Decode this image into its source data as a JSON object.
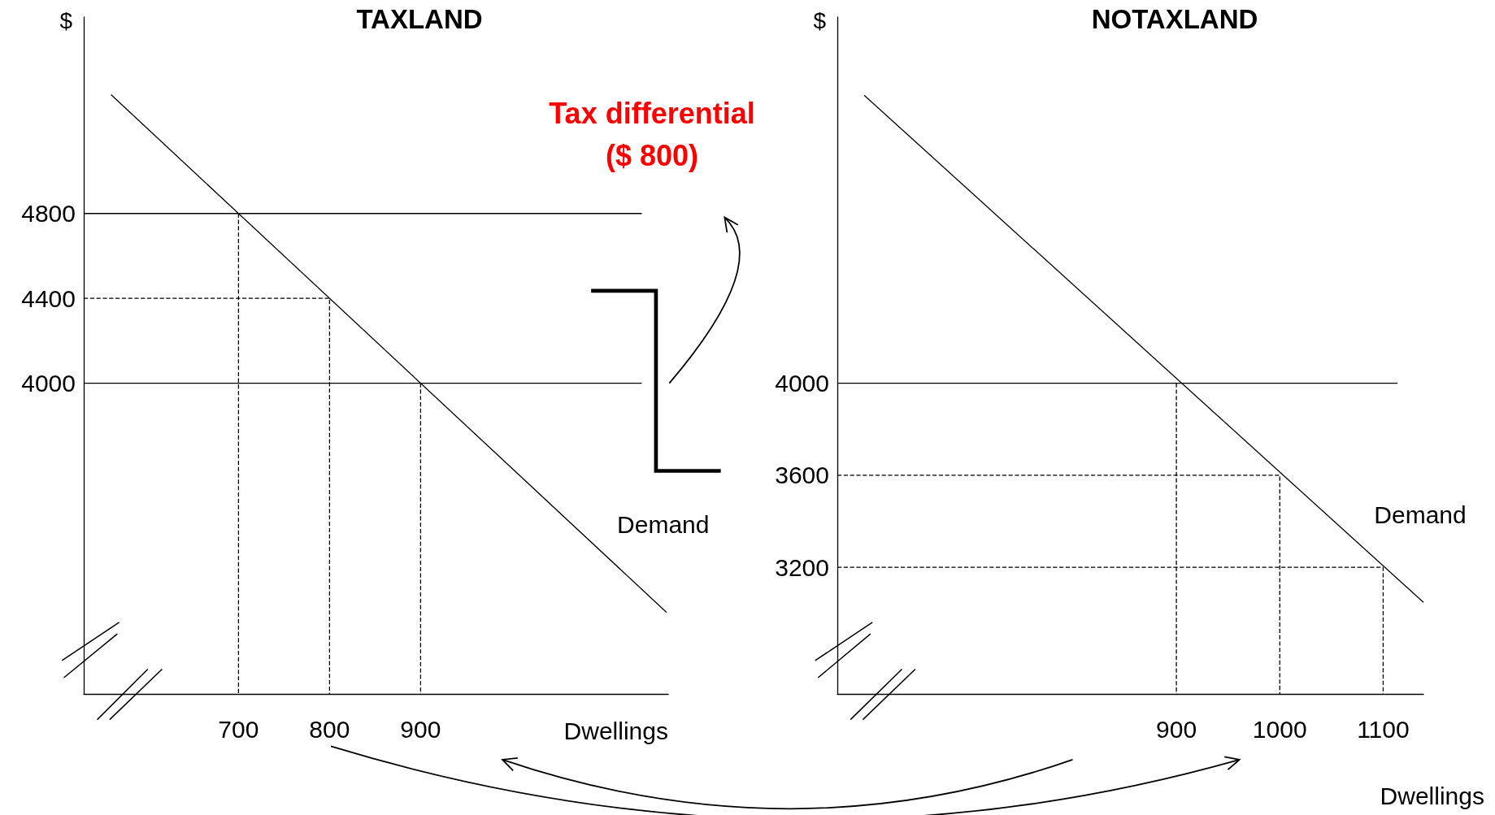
{
  "chart_data": [
    {
      "type": "line",
      "title": "TAXLAND",
      "xlabel": "Dwellings",
      "ylabel": "$",
      "xlim": [
        530,
        1172
      ],
      "ylim": [
        2535,
        5726
      ],
      "xticks": [
        700,
        800,
        900
      ],
      "yticks": [
        4000,
        4400,
        4800
      ],
      "grid": false,
      "legend": false,
      "marker": "none",
      "annotations": [
        "Tax differential\n($ 800)"
      ],
      "series": [
        {
          "name": "Demand",
          "color": "#000000",
          "x": [
            560,
            1170
          ],
          "values": [
            5360,
            2920
          ]
        },
        {
          "color": "#000000",
          "x": [
            530,
            1143
          ],
          "values": [
            4800,
            4800
          ]
        },
        {
          "color": "#000000",
          "x": [
            530,
            1143
          ],
          "values": [
            4000,
            4000
          ]
        },
        {
          "color": "#000000",
          "line_style": "dashed",
          "x": [
            530,
            800,
            800
          ],
          "values": [
            4400,
            4400,
            2535
          ]
        },
        {
          "color": "#000000",
          "line_style": "dashed",
          "x": [
            700,
            700
          ],
          "values": [
            4800,
            2535
          ]
        },
        {
          "color": "#000000",
          "line_style": "dashed",
          "x": [
            900,
            900
          ],
          "values": [
            4000,
            2535
          ]
        }
      ]
    },
    {
      "type": "line",
      "title": "NOTAXLAND",
      "xlabel": "Dwellings",
      "ylabel": "$",
      "xlim": [
        572,
        1139
      ],
      "ylim": [
        2649,
        5592
      ],
      "xticks": [
        900,
        1000,
        1100
      ],
      "yticks": [
        3200,
        3600,
        4000
      ],
      "grid": false,
      "legend": false,
      "marker": "none",
      "series": [
        {
          "name": "Demand",
          "color": "#000000",
          "x": [
            598,
            1139
          ],
          "values": [
            5252,
            3047
          ]
        },
        {
          "color": "#000000",
          "x": [
            572,
            1114
          ],
          "values": [
            4000,
            4000
          ]
        },
        {
          "color": "#000000",
          "line_style": "dashed",
          "x": [
            572,
            1000,
            1000
          ],
          "values": [
            3600,
            3600,
            2649
          ]
        },
        {
          "color": "#000000",
          "line_style": "dashed",
          "x": [
            572,
            1100,
            1100
          ],
          "values": [
            3200,
            3200,
            2649
          ]
        },
        {
          "color": "#000000",
          "line_style": "dashed",
          "x": [
            900,
            900
          ],
          "values": [
            4000,
            2649
          ]
        }
      ]
    }
  ]
}
